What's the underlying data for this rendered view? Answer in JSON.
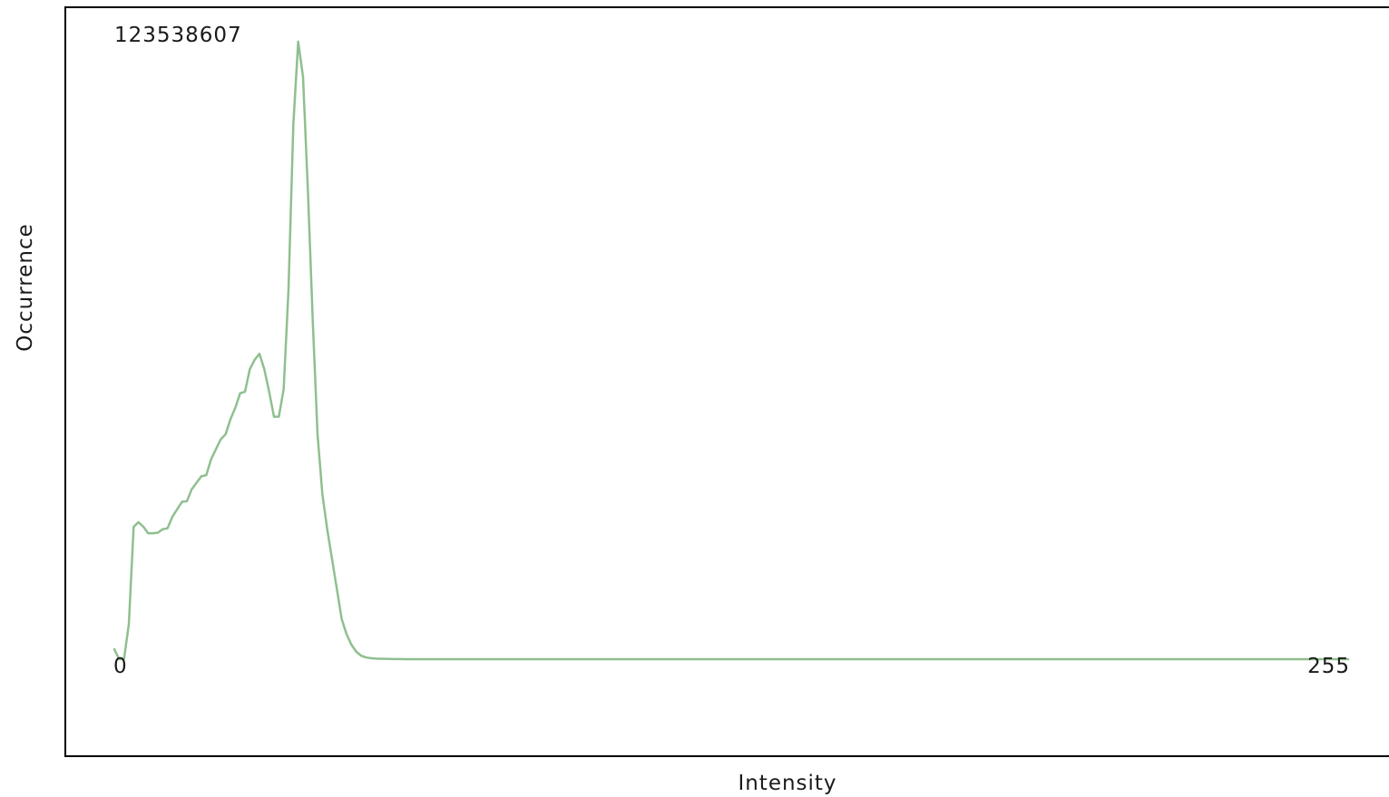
{
  "chart_data": {
    "type": "line",
    "xlabel": "Intensity",
    "ylabel": "Occurrence",
    "x_min_label": "0",
    "x_max_label": "255",
    "y_max_label": "123538607",
    "xlim": [
      0,
      255
    ],
    "ylim": [
      0,
      123538607
    ],
    "grid": false,
    "legend": "none",
    "series": [
      {
        "color": "#8fbf8f",
        "x": [
          0,
          1,
          2,
          3,
          4,
          5,
          6,
          7,
          8,
          9,
          10,
          11,
          12,
          13,
          14,
          15,
          16,
          17,
          18,
          19,
          20,
          21,
          22,
          23,
          24,
          25,
          26,
          27,
          28,
          29,
          30,
          31,
          32,
          33,
          34,
          35,
          36,
          37,
          38,
          39,
          40,
          41,
          42,
          43,
          44,
          45,
          46,
          47,
          48,
          49,
          50,
          51,
          52,
          53,
          54,
          55,
          56,
          57,
          58,
          59,
          60,
          62,
          64,
          66,
          70,
          80,
          100,
          130,
          160,
          200,
          230,
          255
        ],
        "y": [
          2000000,
          0,
          0,
          7000000,
          26500000,
          27400000,
          26500000,
          25200000,
          25200000,
          25300000,
          26000000,
          26200000,
          28500000,
          30000000,
          31500000,
          31600000,
          34000000,
          35300000,
          36600000,
          36800000,
          40000000,
          42000000,
          44000000,
          45000000,
          48000000,
          50300000,
          53200000,
          53500000,
          58000000,
          59900000,
          61100000,
          58000000,
          53500000,
          48500000,
          48500000,
          54000000,
          74000000,
          107000000,
          123538607,
          116500000,
          94000000,
          68000000,
          45000000,
          33000000,
          26000000,
          20000000,
          14000000,
          8000000,
          5000000,
          2900000,
          1500000,
          700000,
          350000,
          200000,
          120000,
          80000,
          60000,
          40000,
          30000,
          20000,
          10000,
          5000,
          3000,
          1500,
          800,
          300,
          150,
          0,
          0,
          0,
          0,
          0
        ]
      }
    ]
  }
}
